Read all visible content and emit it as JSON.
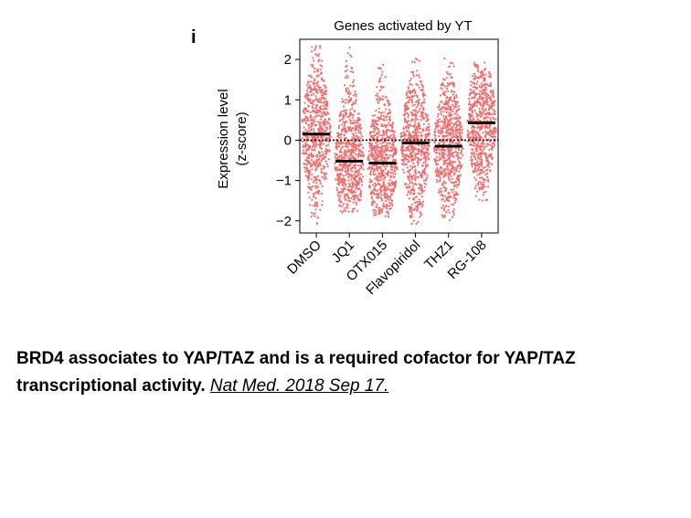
{
  "panel_label": "i",
  "chart_data": {
    "type": "scatter",
    "title": "Genes activated by YT",
    "ylabel_line1": "Expression level",
    "ylabel_line2": "(z-score)",
    "categories": [
      "DMSO",
      "JQ1",
      "OTX015",
      "Flavopiridol",
      "THZ1",
      "RG-108"
    ],
    "medians": [
      0.15,
      -0.52,
      -0.57,
      -0.07,
      -0.15,
      0.43
    ],
    "ranges": [
      [
        -2.1,
        2.4
      ],
      [
        -1.8,
        2.3
      ],
      [
        -1.9,
        1.9
      ],
      [
        -2.1,
        2.35
      ],
      [
        -2.0,
        2.25
      ],
      [
        -1.5,
        1.95
      ]
    ],
    "ylim": [
      -2.3,
      2.5
    ],
    "yticks": [
      -2,
      -1,
      0,
      1,
      2
    ],
    "ytick_labels": [
      "−2",
      "−1",
      "0",
      "1",
      "2"
    ],
    "reference_line": 0,
    "point_color": "#f26b6b",
    "median_color": "#000000"
  },
  "caption": {
    "title": "BRD4 associates to YAP/TAZ and is a required cofactor for YAP/TAZ transcriptional activity.",
    "citation": "Nat Med. 2018 Sep 17."
  }
}
